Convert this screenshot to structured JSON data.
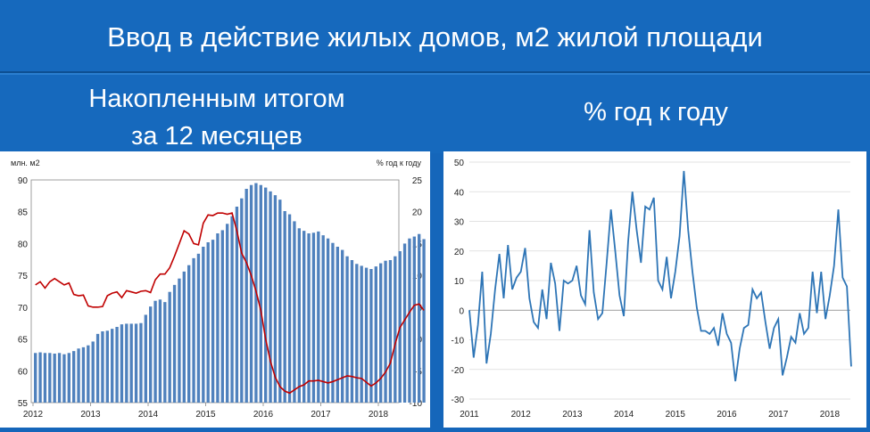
{
  "header": {
    "title": "Ввод в действие жилых домов, м2 жилой площади",
    "left_line1": "Накопленным итогом",
    "left_line2": "за 12 месяцев",
    "right_title": "% год к году"
  },
  "colors": {
    "background": "#1566ba",
    "bars": "#4f81bd",
    "line_red": "#c00000",
    "line_blue": "#2e75b6"
  },
  "chart_data": [
    {
      "type": "bar",
      "title": "",
      "ylabel_left": "млн. м2",
      "ylabel_right": "% год к году",
      "ylim_left": [
        55,
        90
      ],
      "ylim_right": [
        -10,
        25
      ],
      "yticks_left": [
        55,
        60,
        65,
        70,
        75,
        80,
        85,
        90
      ],
      "yticks_right": [
        -10,
        -5,
        0,
        5,
        10,
        15,
        20,
        25
      ],
      "xticks": [
        "2012",
        "2013",
        "2014",
        "2015",
        "2016",
        "2017",
        "2018"
      ],
      "grid": false,
      "series": [
        {
          "name": "млн. м2",
          "type": "bar",
          "axis": "left",
          "values": [
            62.8,
            62.9,
            62.8,
            62.8,
            62.7,
            62.8,
            62.6,
            62.8,
            63.1,
            63.5,
            63.7,
            64.0,
            64.6,
            65.8,
            66.2,
            66.3,
            66.6,
            66.9,
            67.3,
            67.4,
            67.4,
            67.4,
            67.5,
            68.8,
            70.1,
            71.0,
            71.2,
            70.8,
            72.4,
            73.5,
            74.5,
            75.6,
            76.6,
            77.7,
            78.4,
            79.5,
            80.2,
            80.6,
            81.6,
            82.1,
            83.1,
            84.3,
            85.8,
            87.1,
            88.6,
            89.2,
            89.5,
            89.2,
            88.8,
            88.2,
            87.6,
            86.9,
            85.1,
            84.6,
            83.5,
            82.4,
            82.0,
            81.6,
            81.7,
            81.9,
            81.3,
            80.8,
            80.1,
            79.5,
            79.0,
            78.0,
            77.4,
            76.8,
            76.5,
            76.2,
            76.0,
            76.4,
            76.9,
            77.3,
            77.4,
            78.0,
            78.8,
            80.0,
            80.8,
            81.1,
            81.5,
            80.7
          ]
        },
        {
          "name": "% год к году",
          "type": "line",
          "axis": "right",
          "values": [
            8.5,
            9.0,
            8.0,
            9.0,
            9.5,
            9.0,
            8.5,
            8.8,
            7.0,
            6.8,
            6.9,
            5.2,
            5.0,
            5.0,
            5.1,
            6.8,
            7.2,
            7.4,
            6.5,
            7.6,
            7.4,
            7.2,
            7.5,
            7.6,
            7.3,
            9.3,
            10.2,
            10.2,
            11.2,
            13.0,
            15.0,
            17.0,
            16.5,
            15.0,
            14.8,
            18.2,
            19.5,
            19.4,
            19.8,
            19.8,
            19.6,
            19.8,
            17.0,
            13.5,
            12.0,
            10.0,
            7.5,
            4.5,
            0.0,
            -3.5,
            -6.0,
            -7.5,
            -8.2,
            -8.5,
            -8.0,
            -7.5,
            -7.2,
            -6.6,
            -6.6,
            -6.5,
            -6.7,
            -6.9,
            -6.7,
            -6.4,
            -6.1,
            -5.8,
            -5.9,
            -6.1,
            -6.2,
            -6.8,
            -7.4,
            -6.9,
            -6.2,
            -5.2,
            -3.8,
            -0.8,
            1.8,
            3.0,
            4.2,
            5.3,
            5.5,
            4.5
          ]
        }
      ]
    },
    {
      "type": "line",
      "title": "",
      "ylim": [
        -30,
        50
      ],
      "yticks": [
        -30,
        -20,
        -10,
        0,
        10,
        20,
        30,
        40,
        50
      ],
      "xticks": [
        "2011",
        "2012",
        "2013",
        "2014",
        "2015",
        "2016",
        "2017",
        "2018"
      ],
      "grid": true,
      "series": [
        {
          "name": "% год к году",
          "values": [
            0,
            -16,
            -5,
            13,
            -18,
            -8,
            7,
            19,
            4,
            22,
            7,
            11,
            13,
            21,
            4,
            -4,
            -6,
            7,
            -3,
            16,
            9,
            -7,
            10,
            9,
            10,
            15,
            5,
            2,
            27,
            6,
            -3,
            -1,
            16,
            34,
            20,
            5,
            -2,
            23,
            40,
            27,
            16,
            35,
            34,
            38,
            10,
            7,
            18,
            4,
            13,
            25,
            47,
            27,
            13,
            1,
            -7,
            -7,
            -8,
            -6,
            -12,
            -1,
            -8,
            -11,
            -24,
            -13,
            -6,
            -5,
            7,
            4,
            6,
            -4,
            -13,
            -6,
            -3,
            -22,
            -16,
            -9,
            -11,
            -1,
            -8,
            -6,
            13,
            -1,
            13,
            -3,
            5,
            15,
            34,
            11,
            8,
            -19
          ]
        }
      ]
    }
  ]
}
